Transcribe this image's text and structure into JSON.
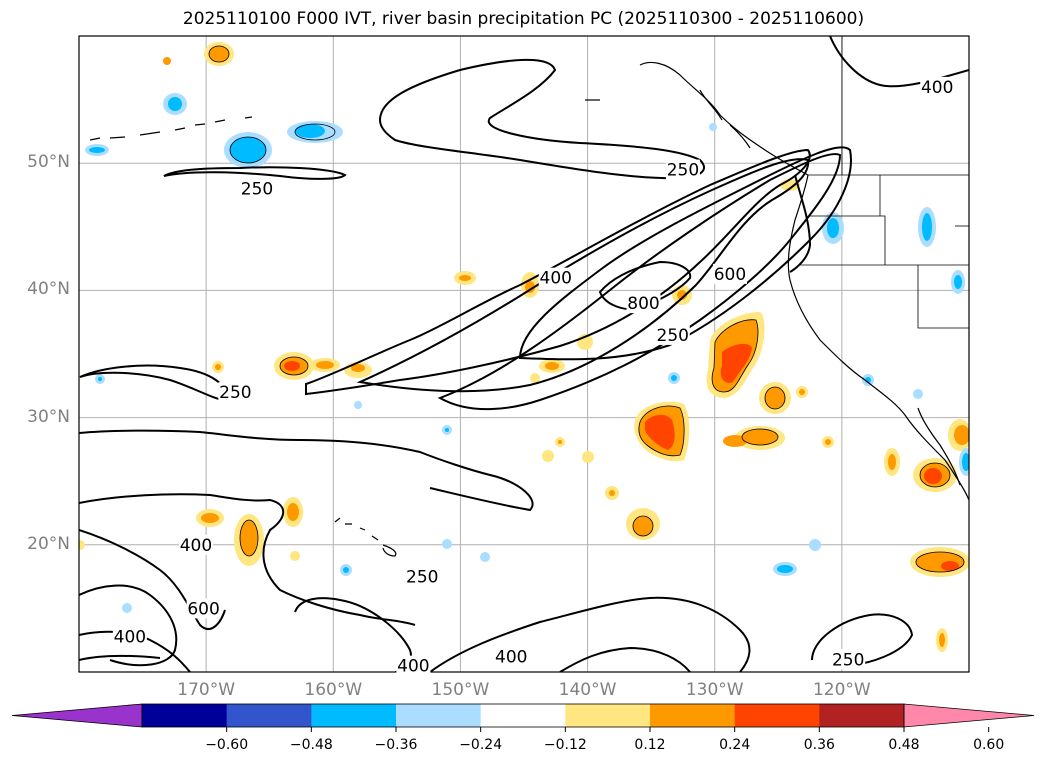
{
  "title": "2025110100 F000 IVT, river basin precipitation PC (2025110300 - 2025110600)",
  "map": {
    "lon_range": [
      -180,
      -110
    ],
    "lat_range": [
      10,
      60
    ],
    "gridlines": true,
    "lat_ticks": [
      {
        "value": 20,
        "label": "20°N"
      },
      {
        "value": 30,
        "label": "30°N"
      },
      {
        "value": 40,
        "label": "40°N"
      },
      {
        "value": 50,
        "label": "50°N"
      }
    ],
    "lon_ticks": [
      {
        "value": -170,
        "label": "170°W"
      },
      {
        "value": -160,
        "label": "160°W"
      },
      {
        "value": -150,
        "label": "150°W"
      },
      {
        "value": -140,
        "label": "140°W"
      },
      {
        "value": -130,
        "label": "130°W"
      },
      {
        "value": -120,
        "label": "120°W"
      }
    ]
  },
  "contour_labels": [
    {
      "text": "400",
      "lon": -112.5,
      "lat": 56.0
    },
    {
      "text": "250",
      "lon": -166.0,
      "lat": 48.0
    },
    {
      "text": "250",
      "lon": -132.5,
      "lat": 49.5
    },
    {
      "text": "400",
      "lon": -142.5,
      "lat": 41.0
    },
    {
      "text": "600",
      "lon": -128.8,
      "lat": 41.3
    },
    {
      "text": "800",
      "lon": -135.6,
      "lat": 39.0
    },
    {
      "text": "250",
      "lon": -133.3,
      "lat": 36.5
    },
    {
      "text": "250",
      "lon": -167.7,
      "lat": 32.0
    },
    {
      "text": "400",
      "lon": -170.8,
      "lat": 20.0
    },
    {
      "text": "600",
      "lon": -170.2,
      "lat": 15.0
    },
    {
      "text": "250",
      "lon": -153.0,
      "lat": 17.5
    },
    {
      "text": "400",
      "lon": -176.0,
      "lat": 12.8
    },
    {
      "text": "400",
      "lon": -146.0,
      "lat": 11.2
    },
    {
      "text": "400",
      "lon": -153.7,
      "lat": 10.5
    },
    {
      "text": "250",
      "lon": -119.5,
      "lat": 11.0
    }
  ],
  "colorbar": {
    "colors": [
      "#9933cc",
      "#000099",
      "#3355cc",
      "#00bbff",
      "#aaddff",
      "#ffffff",
      "#ffe680",
      "#ff9900",
      "#ff4400",
      "#b22222",
      "#ff88aa"
    ],
    "boundaries": [
      -0.6,
      -0.48,
      -0.36,
      -0.24,
      -0.12,
      0.12,
      0.24,
      0.36,
      0.48,
      0.6
    ],
    "tick_labels": [
      "−0.60",
      "−0.48",
      "−0.36",
      "−0.24",
      "−0.12",
      "0.12",
      "0.24",
      "0.36",
      "0.48",
      "0.60"
    ],
    "extend": "both"
  }
}
